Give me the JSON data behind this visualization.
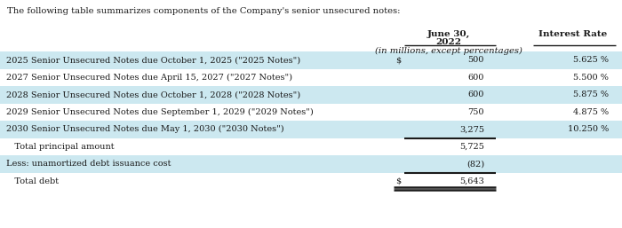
{
  "intro_text": "The following table summarizes components of the Company's senior unsecured notes:",
  "rows": [
    {
      "label": "2025 Senior Unsecured Notes due October 1, 2025 (\"2025 Notes\")",
      "dollar_sign": "$",
      "value": "500",
      "rate": "5.625 %",
      "shaded": true
    },
    {
      "label": "2027 Senior Unsecured Notes due April 15, 2027 (\"2027 Notes\")",
      "dollar_sign": "",
      "value": "600",
      "rate": "5.500 %",
      "shaded": false
    },
    {
      "label": "2028 Senior Unsecured Notes due October 1, 2028 (\"2028 Notes\")",
      "dollar_sign": "",
      "value": "600",
      "rate": "5.875 %",
      "shaded": true
    },
    {
      "label": "2029 Senior Unsecured Notes due September 1, 2029 (\"2029 Notes\")",
      "dollar_sign": "",
      "value": "750",
      "rate": "4.875 %",
      "shaded": false
    },
    {
      "label": "2030 Senior Unsecured Notes due May 1, 2030 (\"2030 Notes\")",
      "dollar_sign": "",
      "value": "3,275",
      "rate": "10.250 %",
      "shaded": true,
      "top_border_after": true
    },
    {
      "label": "   Total principal amount",
      "dollar_sign": "",
      "value": "5,725",
      "rate": "",
      "shaded": false,
      "top_border": true
    },
    {
      "label": "Less: unamortized debt issuance cost",
      "dollar_sign": "",
      "value": "(82)",
      "rate": "",
      "shaded": true,
      "top_border_after": true
    },
    {
      "label": "   Total debt",
      "dollar_sign": "$",
      "value": "5,643",
      "rate": "",
      "shaded": false,
      "top_border": true,
      "double_bottom": true
    }
  ],
  "bg_color": "#ffffff",
  "shaded_color": "#cce8f0",
  "text_color": "#1a1a1a"
}
